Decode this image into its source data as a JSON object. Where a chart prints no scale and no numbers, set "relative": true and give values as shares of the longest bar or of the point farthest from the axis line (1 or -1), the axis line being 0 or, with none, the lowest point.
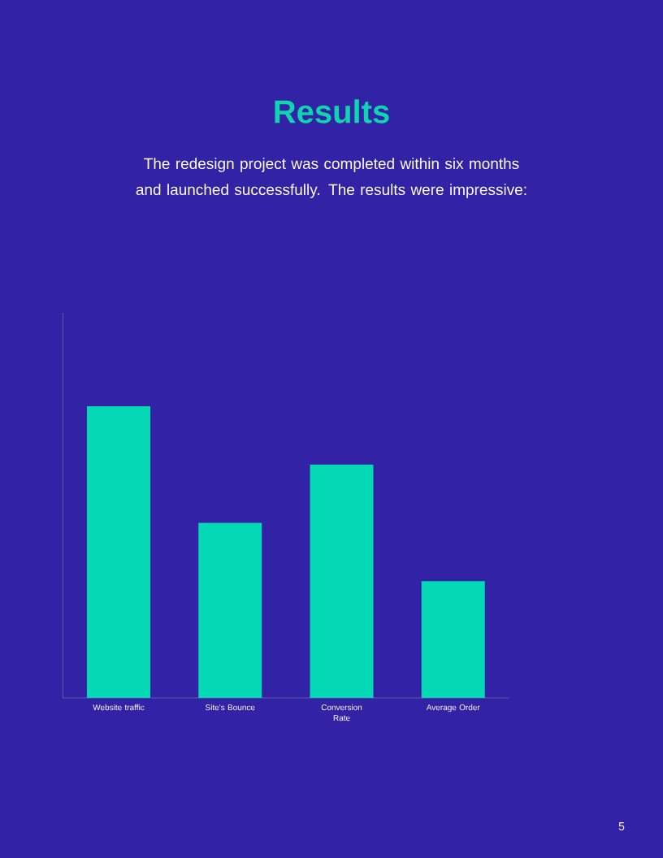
{
  "chart_data": {
    "type": "bar",
    "title": "Results",
    "subtitle": "The redesign project was completed within six months and launched successfully. The results were impressive:",
    "categories": [
      "Website traffic",
      "Site's Bounce",
      "Conversion Rate",
      "Average Order"
    ],
    "values": [
      1,
      0.6,
      0.8,
      0.4
    ],
    "color": "#05d8b4",
    "relative": true,
    "annotations": [
      "5"
    ]
  }
}
